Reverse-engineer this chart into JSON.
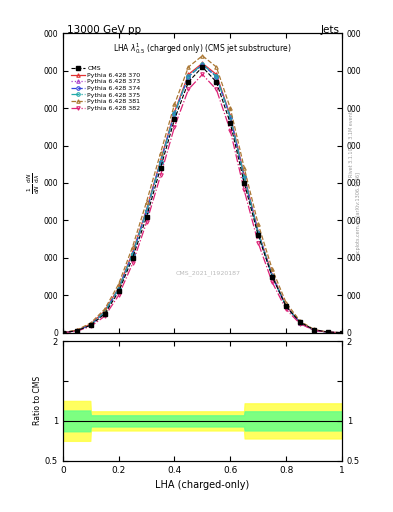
{
  "title_top": "13000 GeV pp",
  "title_right": "Jets",
  "plot_title": "LHA $\\lambda^1_{0.5}$ (charged only) (CMS jet substructure)",
  "xlabel": "LHA (charged-only)",
  "ylabel_ratio": "Ratio to CMS",
  "watermark": "CMS_2021_I1920187",
  "right_label": "Rivet 3.1.10, ≥ 3.1M events",
  "right_label2": "mcplots.cern.ch [arXiv:1306.3436]",
  "x": [
    0.0,
    0.05,
    0.1,
    0.15,
    0.2,
    0.25,
    0.3,
    0.35,
    0.4,
    0.45,
    0.5,
    0.55,
    0.6,
    0.65,
    0.7,
    0.75,
    0.8,
    0.85,
    0.9,
    0.95,
    1.0
  ],
  "cms_y": [
    0.0,
    50,
    200,
    500,
    1100,
    2000,
    3100,
    4400,
    5700,
    6700,
    7100,
    6700,
    5600,
    4000,
    2600,
    1500,
    700,
    280,
    80,
    15,
    0.0
  ],
  "p370_y": [
    0.0,
    60,
    230,
    580,
    1200,
    2150,
    3300,
    4600,
    5900,
    6900,
    7200,
    6900,
    5800,
    4200,
    2700,
    1550,
    720,
    270,
    70,
    12,
    0.0
  ],
  "p373_y": [
    0.0,
    55,
    215,
    560,
    1180,
    2120,
    3270,
    4570,
    5870,
    6860,
    7180,
    6870,
    5770,
    4170,
    2680,
    1530,
    710,
    265,
    68,
    11,
    0.0
  ],
  "p374_y": [
    0.0,
    52,
    210,
    550,
    1170,
    2100,
    3250,
    4550,
    5850,
    6840,
    7160,
    6840,
    5750,
    4150,
    2660,
    1510,
    700,
    260,
    66,
    10,
    0.0
  ],
  "p375_y": [
    0.0,
    53,
    212,
    555,
    1175,
    2110,
    3260,
    4560,
    5860,
    6850,
    7170,
    6850,
    5760,
    4160,
    2670,
    1520,
    705,
    262,
    67,
    11,
    0.0
  ],
  "p381_y": [
    0.0,
    70,
    260,
    630,
    1300,
    2300,
    3500,
    4800,
    6100,
    7100,
    7400,
    7100,
    6000,
    4400,
    2900,
    1700,
    800,
    310,
    85,
    14,
    0.0
  ],
  "p382_y": [
    0.0,
    40,
    170,
    440,
    1000,
    1850,
    2950,
    4200,
    5500,
    6500,
    6900,
    6500,
    5400,
    3800,
    2400,
    1350,
    620,
    240,
    62,
    9,
    0.0
  ],
  "ylim": [
    0,
    8000
  ],
  "xlim": [
    0,
    1
  ],
  "ratio_ylim": [
    0.5,
    2.0
  ],
  "colors": {
    "cms": "#000000",
    "p370": "#e03030",
    "p373": "#aa44cc",
    "p374": "#3344dd",
    "p375": "#22aaaa",
    "p381": "#aa7733",
    "p382": "#dd2277"
  },
  "linestyles": {
    "cms": "--",
    "p370": "-",
    "p373": ":",
    "p374": "--",
    "p375": "-.",
    "p381": "--",
    "p382": "-."
  },
  "markers": {
    "cms": "s",
    "p370": "^",
    "p373": "^",
    "p374": "o",
    "p375": "o",
    "p381": "^",
    "p382": "v"
  }
}
